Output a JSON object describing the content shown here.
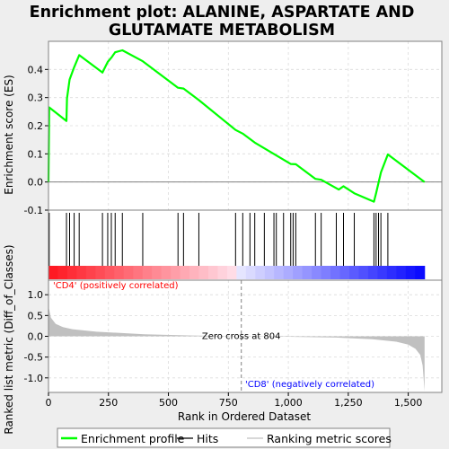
{
  "chart_data": {
    "type": "line",
    "title_line1": "Enrichment plot: ALANINE, ASPARTATE AND",
    "title_line2": "GLUTAMATE METABOLISM",
    "xlabel": "Rank in Ordered Dataset",
    "xlim": [
      0,
      1640
    ],
    "x_ticks": [
      0,
      250,
      500,
      750,
      1000,
      1250,
      1500
    ],
    "x_tick_labels": [
      "0",
      "250",
      "500",
      "750",
      "1,000",
      "1,250",
      "1,500"
    ],
    "es_panel": {
      "ylabel": "Enrichment score (ES)",
      "ylim": [
        -0.1,
        0.5
      ],
      "y_ticks": [
        -0.1,
        0.0,
        0.1,
        0.2,
        0.3,
        0.4
      ],
      "y_tick_labels": [
        "-0.1",
        "0.0",
        "0.1",
        "0.2",
        "0.3",
        "0.4"
      ],
      "series_name": "Enrichment profile",
      "color": "#00ff00",
      "x": [
        0,
        3,
        75,
        77,
        88,
        107,
        128,
        225,
        247,
        262,
        278,
        308,
        393,
        540,
        563,
        627,
        780,
        810,
        860,
        1010,
        1031,
        1113,
        1137,
        1210,
        1230,
        1275,
        1357,
        1366,
        1376,
        1386,
        1415,
        1568
      ],
      "y": [
        0.0,
        0.265,
        0.217,
        0.297,
        0.364,
        0.408,
        0.451,
        0.389,
        0.427,
        0.442,
        0.461,
        0.468,
        0.429,
        0.335,
        0.332,
        0.291,
        0.185,
        0.172,
        0.14,
        0.064,
        0.063,
        0.011,
        0.008,
        -0.027,
        -0.015,
        -0.04,
        -0.07,
        -0.04,
        -0.003,
        0.034,
        0.098,
        0.0
      ]
    },
    "hits": [
      3,
      75,
      88,
      107,
      128,
      225,
      247,
      262,
      278,
      308,
      393,
      540,
      563,
      627,
      780,
      810,
      840,
      860,
      900,
      940,
      950,
      980,
      1010,
      1020,
      1031,
      1113,
      1137,
      1200,
      1230,
      1275,
      1357,
      1366,
      1376,
      1386,
      1415
    ],
    "rank_panel": {
      "ylabel": "Ranked list metric (Diff_of_Classes)",
      "ylim": [
        -1.35,
        1.35
      ],
      "y_ticks": [
        -1.0,
        -0.5,
        0.0,
        0.5,
        1.0
      ],
      "y_tick_labels": [
        "-1.0",
        "-0.5",
        "0.0",
        "0.5",
        "1.0"
      ],
      "x": [
        0,
        10,
        30,
        60,
        100,
        200,
        400,
        600,
        804,
        1000,
        1200,
        1350,
        1450,
        1500,
        1530,
        1550,
        1560,
        1568
      ],
      "y": [
        0.72,
        0.45,
        0.3,
        0.22,
        0.17,
        0.11,
        0.05,
        0.02,
        0.0,
        -0.01,
        -0.03,
        -0.07,
        -0.13,
        -0.2,
        -0.3,
        -0.45,
        -0.7,
        -1.32
      ],
      "color": "#c0c0c0",
      "zero_cross_rank": 804,
      "zero_cross_label": "Zero cross at 804",
      "pos_label": "'CD4' (positively correlated)",
      "neg_label": "'CD8' (negatively correlated)",
      "pos_color": "#ff0000",
      "neg_color": "#0000ff"
    },
    "legend": [
      {
        "label": "Enrichment profile",
        "color": "#00ff00"
      },
      {
        "label": "Hits",
        "color": "#000000"
      },
      {
        "label": "Ranking metric scores",
        "color": "#c0c0c0"
      }
    ]
  }
}
